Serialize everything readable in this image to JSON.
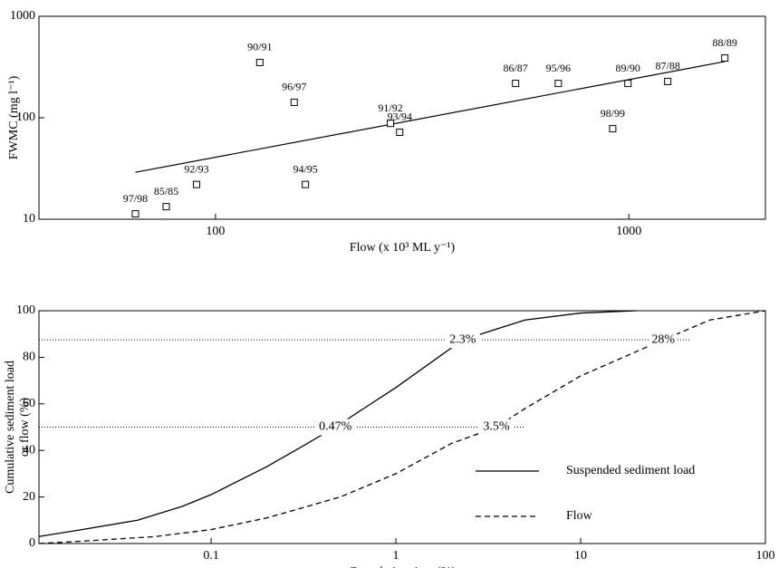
{
  "chart_data": [
    {
      "type": "scatter",
      "xlabel": "Flow (x 10³ ML y⁻¹)",
      "ylabel": "FWMC (mg l⁻¹)",
      "xscale": "log",
      "yscale": "log",
      "xlim": [
        37.4,
        2140
      ],
      "ylim": [
        10,
        1000
      ],
      "xticks": [
        100,
        1000
      ],
      "yticks": [
        10,
        100,
        1000
      ],
      "series": [
        {
          "color": "#000000",
          "marker": "square",
          "x": [
            64,
            76,
            90,
            128,
            155,
            165,
            265,
            279,
            532,
            675,
            914,
            995,
            1242,
            1707
          ],
          "values": [
            11.3,
            13.3,
            22,
            351,
            142,
            22,
            88,
            72,
            218,
            218,
            78,
            218,
            228,
            388
          ],
          "labels": [
            "97/98",
            "85/85",
            "92/93",
            "90/91",
            "96/97",
            "94/95",
            "91/92",
            "93/94",
            "86/87",
            "95/96",
            "98/99",
            "89/90",
            "87/88",
            "88/89"
          ]
        }
      ],
      "fit": {
        "color": "#000000",
        "x": [
          64,
          1707
        ],
        "values": [
          29,
          358
        ]
      }
    },
    {
      "type": "line",
      "xlabel": "Cumulative time (%)",
      "ylabel": [
        "Cumulative sediment load",
        "or flow (%)"
      ],
      "xscale": "log",
      "xlim": [
        0.0117,
        100
      ],
      "ylim": [
        0,
        100
      ],
      "xticks": [
        0.1,
        1,
        10,
        100
      ],
      "yticks": [
        0,
        20,
        40,
        60,
        80,
        100
      ],
      "legend": "lower right",
      "hlines": [
        50,
        87.5
      ],
      "annotations": [
        {
          "text": "0.47%",
          "x": 0.47,
          "y": 50
        },
        {
          "text": "3.5%",
          "x": 3.5,
          "y": 50
        },
        {
          "text": "2.3%",
          "x": 2.3,
          "y": 87.5
        },
        {
          "text": "28%",
          "x": 28,
          "y": 87.5
        }
      ],
      "series": [
        {
          "name": "Suspended sediment load",
          "color": "#000000",
          "dash": false,
          "x": [
            0.0117,
            0.02,
            0.04,
            0.07,
            0.1,
            0.2,
            0.3,
            0.47,
            0.7,
            1,
            2.3,
            5,
            10,
            20
          ],
          "values": [
            3,
            6,
            10,
            16,
            21,
            33,
            41,
            50,
            59,
            67,
            87.5,
            96,
            99,
            100
          ]
        },
        {
          "name": "Flow",
          "color": "#000000",
          "dash": true,
          "x": [
            0.0117,
            0.02,
            0.05,
            0.1,
            0.2,
            0.5,
            1,
            2,
            3.5,
            5,
            10,
            28,
            50,
            100
          ],
          "values": [
            0,
            1,
            3,
            6,
            11,
            20,
            30,
            43,
            50,
            58,
            72,
            87.5,
            96,
            100
          ]
        }
      ]
    }
  ]
}
